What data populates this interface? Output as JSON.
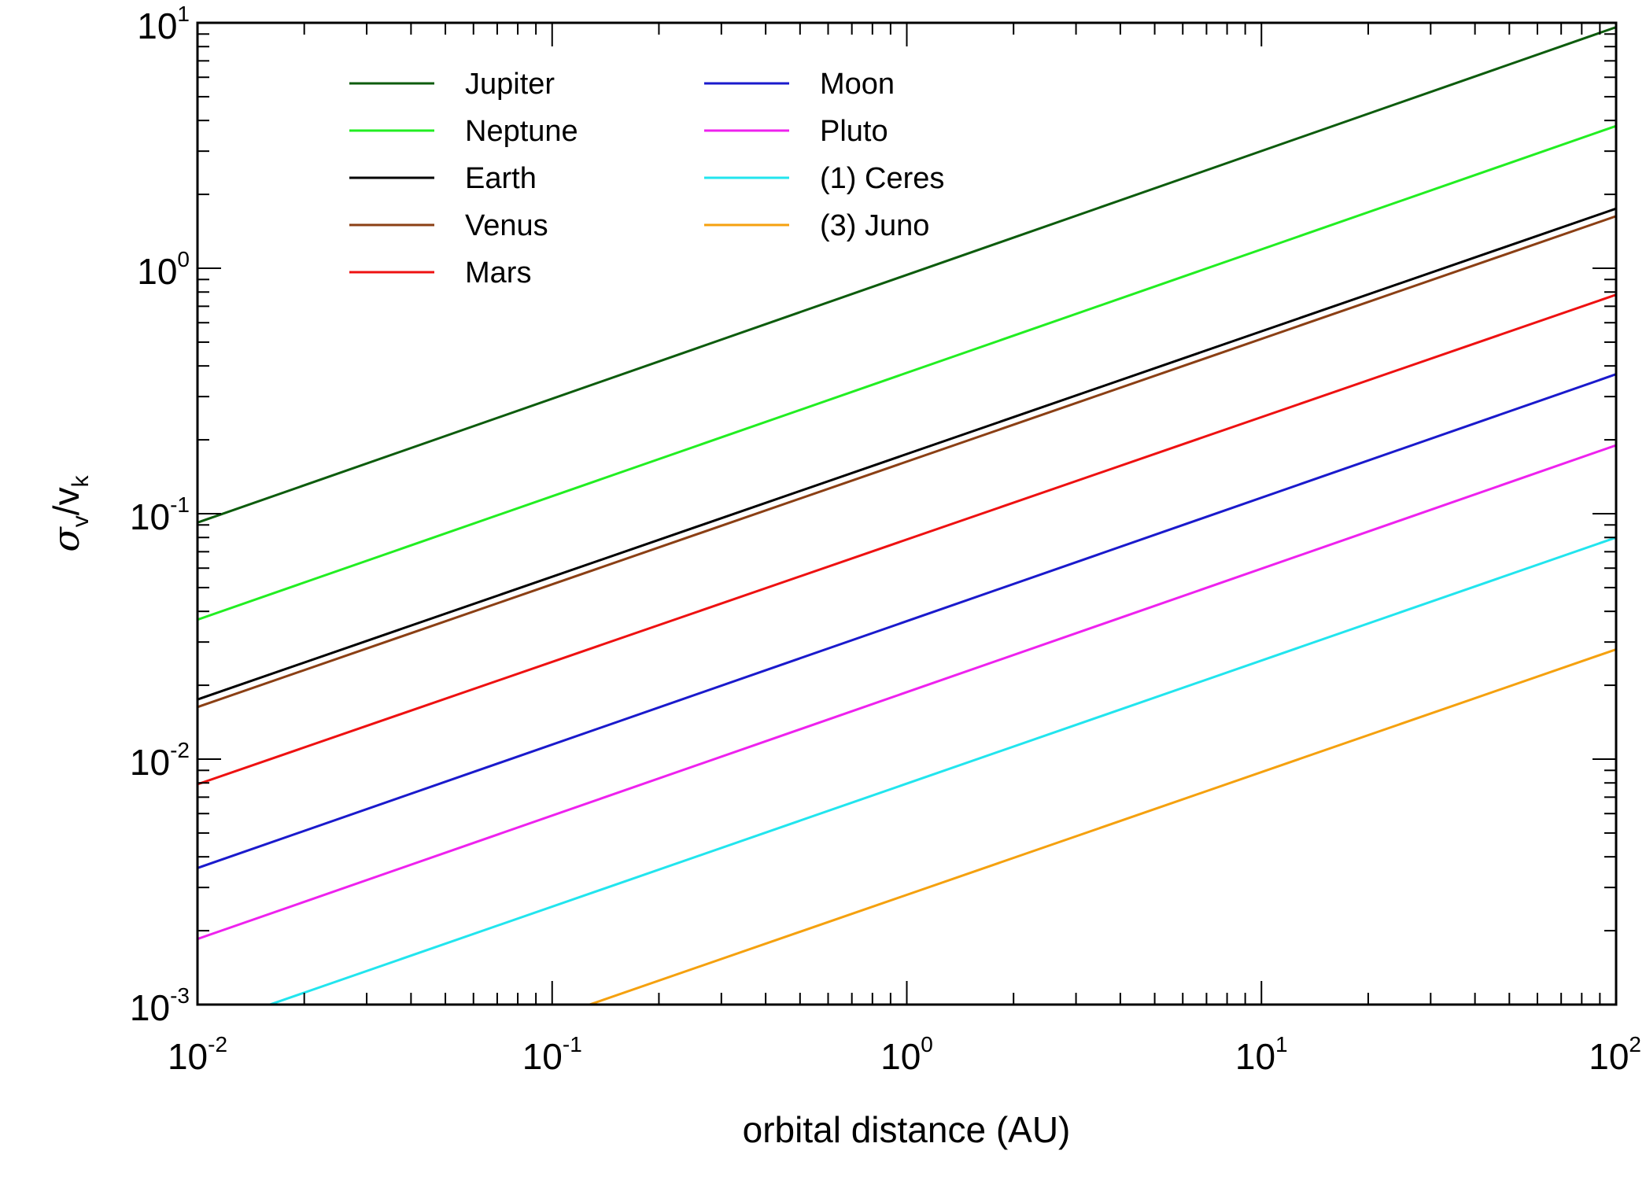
{
  "chart_data": {
    "type": "line",
    "xlabel": "orbital distance (AU)",
    "ylabel": {
      "sigma": "σ",
      "sub1": "v",
      "slash": "/v",
      "sub2": "k"
    },
    "x_scale": "log",
    "y_scale": "log",
    "xlim": [
      0.01,
      100
    ],
    "ylim": [
      0.001,
      10
    ],
    "grid": false,
    "legend_placement": "top-left",
    "x_ticks": [
      {
        "value": 0.01,
        "base": "10",
        "exp": "-2"
      },
      {
        "value": 0.1,
        "base": "10",
        "exp": "-1"
      },
      {
        "value": 1,
        "base": "10",
        "exp": "0"
      },
      {
        "value": 10,
        "base": "10",
        "exp": "1"
      },
      {
        "value": 100,
        "base": "10",
        "exp": "2"
      }
    ],
    "y_ticks": [
      {
        "value": 0.001,
        "base": "10",
        "exp": "-3"
      },
      {
        "value": 0.01,
        "base": "10",
        "exp": "-2"
      },
      {
        "value": 0.1,
        "base": "10",
        "exp": "-1"
      },
      {
        "value": 1,
        "base": "10",
        "exp": "0"
      },
      {
        "value": 10,
        "base": "10",
        "exp": "1"
      }
    ],
    "series": [
      {
        "name": "Jupiter",
        "color": "#0d5c0d",
        "x": [
          0.01,
          100
        ],
        "y": [
          0.092,
          9.6
        ]
      },
      {
        "name": "Neptune",
        "color": "#22ee22",
        "x": [
          0.01,
          100
        ],
        "y": [
          0.037,
          3.8
        ]
      },
      {
        "name": "Earth",
        "color": "#000000",
        "x": [
          0.01,
          100
        ],
        "y": [
          0.0175,
          1.75
        ]
      },
      {
        "name": "Venus",
        "color": "#8b3f14",
        "x": [
          0.01,
          100
        ],
        "y": [
          0.0163,
          1.63
        ]
      },
      {
        "name": "Mars",
        "color": "#ee1111",
        "x": [
          0.01,
          100
        ],
        "y": [
          0.0079,
          0.78
        ]
      },
      {
        "name": "Moon",
        "color": "#1a1acc",
        "x": [
          0.01,
          100
        ],
        "y": [
          0.0036,
          0.37
        ]
      },
      {
        "name": "Pluto",
        "color": "#ee22ee",
        "x": [
          0.01,
          100
        ],
        "y": [
          0.00185,
          0.19
        ]
      },
      {
        "name": "(1) Ceres",
        "color": "#22e5ee",
        "x": [
          0.01,
          100
        ],
        "y": [
          0.00079,
          0.08
        ]
      },
      {
        "name": "(3) Juno",
        "color": "#f5a10f",
        "x": [
          0.01,
          100
        ],
        "y": [
          0.00028,
          0.028
        ]
      }
    ]
  }
}
